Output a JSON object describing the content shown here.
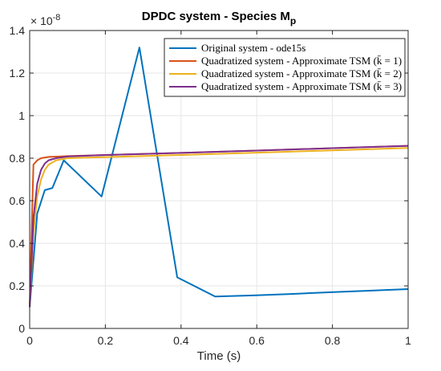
{
  "chart_data": {
    "type": "line",
    "title_main": "DPDC system - Species M",
    "title_sub": "p",
    "xlabel": "Time (s)",
    "ylabel": "",
    "y_exponent_base": "× 10",
    "y_exponent_power": "-8",
    "xlim": [
      0,
      1
    ],
    "ylim": [
      0,
      1.4
    ],
    "xticks": [
      0,
      0.2,
      0.4,
      0.6,
      0.8,
      1
    ],
    "xtick_labels": [
      "0",
      "0.2",
      "0.4",
      "0.6",
      "0.8",
      "1"
    ],
    "yticks": [
      0,
      0.2,
      0.4,
      0.6,
      0.8,
      1,
      1.2,
      1.4
    ],
    "ytick_labels": [
      "0",
      "0.2",
      "0.4",
      "0.6",
      "0.8",
      "1",
      "1.2",
      "1.4"
    ],
    "grid": true,
    "legend_position": "top-right",
    "series": [
      {
        "name": "Original system - ode15s",
        "color": "#0072BD",
        "x": [
          0,
          0.02,
          0.04,
          0.06,
          0.09,
          0.19,
          0.29,
          0.39,
          0.49,
          0.59,
          0.69,
          0.79,
          0.89,
          1.0
        ],
        "y": [
          0.1,
          0.54,
          0.65,
          0.66,
          0.79,
          0.62,
          1.32,
          0.24,
          0.15,
          0.155,
          0.162,
          0.17,
          0.177,
          0.185
        ]
      },
      {
        "name": "Quadratized system - Approximate TSM (k̄ = 1)",
        "color": "#D95319",
        "x": [
          0,
          0.005,
          0.01,
          0.02,
          0.03,
          0.05,
          0.08,
          0.1,
          0.2,
          0.4,
          0.6,
          0.8,
          1.0
        ],
        "y": [
          0.1,
          0.45,
          0.77,
          0.79,
          0.8,
          0.806,
          0.808,
          0.81,
          0.815,
          0.825,
          0.836,
          0.847,
          0.858
        ]
      },
      {
        "name": "Quadratized system - Approximate TSM (k̄ = 2)",
        "color": "#EDB120",
        "x": [
          0,
          0.01,
          0.02,
          0.03,
          0.04,
          0.05,
          0.07,
          0.1,
          0.15,
          0.2,
          0.4,
          0.6,
          0.8,
          1.0
        ],
        "y": [
          0.1,
          0.45,
          0.62,
          0.7,
          0.745,
          0.77,
          0.79,
          0.8,
          0.803,
          0.805,
          0.815,
          0.826,
          0.837,
          0.848
        ]
      },
      {
        "name": "Quadratized system - Approximate TSM (k̄ = 3)",
        "color": "#7E2F8E",
        "x": [
          0,
          0.01,
          0.02,
          0.03,
          0.04,
          0.05,
          0.07,
          0.1,
          0.2,
          0.4,
          0.6,
          0.8,
          1.0
        ],
        "y": [
          0.1,
          0.52,
          0.68,
          0.745,
          0.775,
          0.79,
          0.8,
          0.808,
          0.815,
          0.825,
          0.836,
          0.847,
          0.858
        ]
      }
    ]
  }
}
